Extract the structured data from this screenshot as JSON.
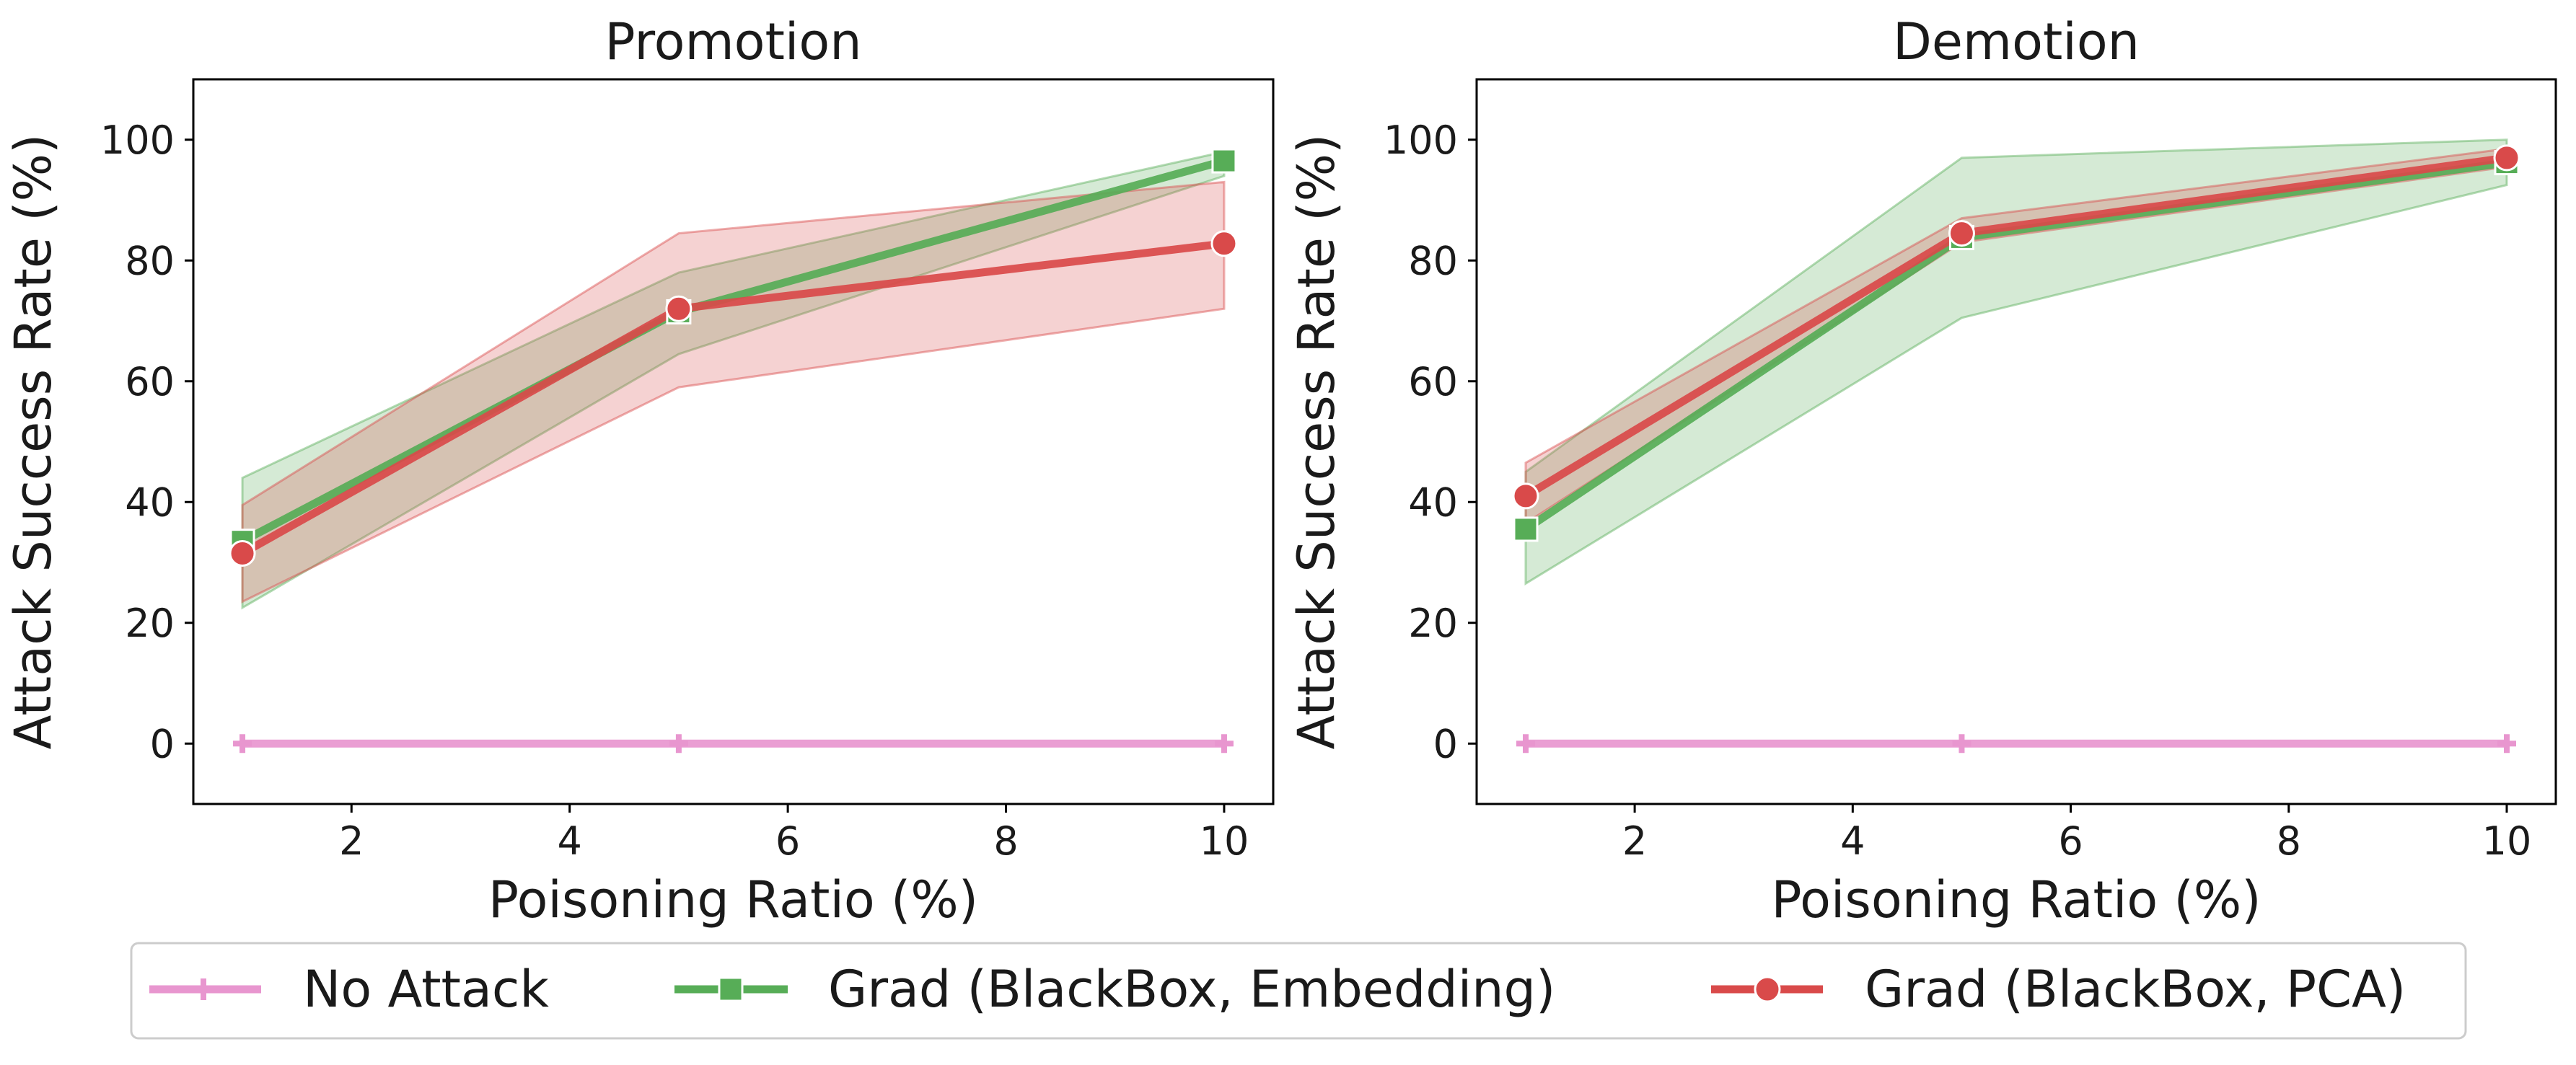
{
  "chart_data": [
    {
      "type": "line",
      "title": "Promotion",
      "xlabel": "Poisoning Ratio (%)",
      "ylabel": "Attack Success Rate (%)",
      "x": [
        1,
        5,
        10
      ],
      "xlim": [
        0.55,
        10.45
      ],
      "ylim": [
        -10,
        110
      ],
      "xticks": [
        2,
        4,
        6,
        8,
        10
      ],
      "yticks": [
        0,
        20,
        40,
        60,
        80,
        100
      ],
      "series": [
        {
          "name": "No Attack",
          "values": [
            0,
            0,
            0
          ],
          "lower": [
            0,
            0,
            0
          ],
          "upper": [
            0,
            0,
            0
          ]
        },
        {
          "name": "Grad (BlackBox, Embedding)",
          "values": [
            33.5,
            71.5,
            96.5
          ],
          "lower": [
            22.5,
            64.5,
            94
          ],
          "upper": [
            44,
            78,
            98
          ]
        },
        {
          "name": "Grad (BlackBox, PCA)",
          "values": [
            31.5,
            72,
            82.8
          ],
          "lower": [
            23.5,
            59,
            72
          ],
          "upper": [
            39.5,
            84.5,
            93
          ]
        }
      ]
    },
    {
      "type": "line",
      "title": "Demotion",
      "xlabel": "Poisoning Ratio (%)",
      "ylabel": "Attack Success Rate (%)",
      "x": [
        1,
        5,
        10
      ],
      "xlim": [
        0.55,
        10.45
      ],
      "ylim": [
        -10,
        110
      ],
      "xticks": [
        2,
        4,
        6,
        8,
        10
      ],
      "yticks": [
        0,
        20,
        40,
        60,
        80,
        100
      ],
      "series": [
        {
          "name": "No Attack",
          "values": [
            0,
            0,
            0
          ],
          "lower": [
            0,
            0,
            0
          ],
          "upper": [
            0,
            0,
            0
          ]
        },
        {
          "name": "Grad (BlackBox, Embedding)",
          "values": [
            35.5,
            83.8,
            96.2
          ],
          "lower": [
            26.5,
            70.5,
            92.5
          ],
          "upper": [
            45,
            97,
            100
          ]
        },
        {
          "name": "Grad (BlackBox, PCA)",
          "values": [
            41,
            84.5,
            97
          ],
          "lower": [
            36.5,
            83,
            95.5
          ],
          "upper": [
            46.5,
            87,
            98.5
          ]
        }
      ]
    }
  ],
  "legend": {
    "placement": "bottom",
    "entries": [
      {
        "label": "No Attack",
        "color": "#e896cf",
        "marker": "plus"
      },
      {
        "label": "Grad (BlackBox, Embedding)",
        "color": "#57ad57",
        "marker": "square"
      },
      {
        "label": "Grad (BlackBox, PCA)",
        "color": "#d94a4a",
        "marker": "circle"
      }
    ]
  },
  "colors": {
    "No Attack": "#e896cf",
    "Grad (BlackBox, Embedding)": "#57ad57",
    "Grad (BlackBox, PCA)": "#d94a4a"
  }
}
